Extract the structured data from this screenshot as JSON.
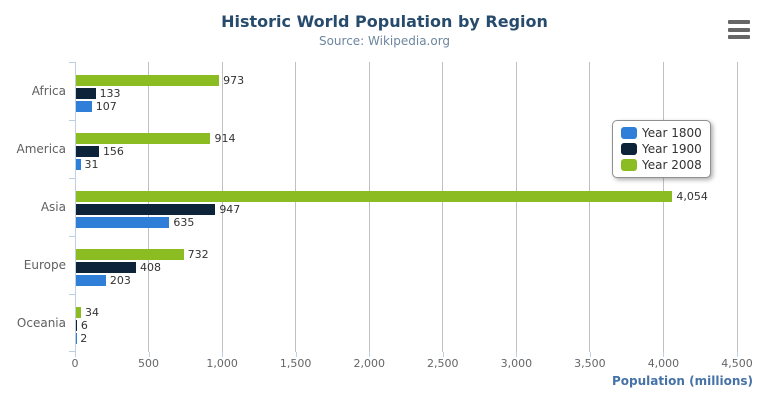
{
  "chart_data": {
    "type": "bar",
    "title": "Historic World Population by Region",
    "subtitle": "Source: Wikipedia.org",
    "categories": [
      "Africa",
      "America",
      "Asia",
      "Europe",
      "Oceania"
    ],
    "series": [
      {
        "name": "Year 1800",
        "color": "#2f7ed8",
        "values": [
          107,
          31,
          635,
          203,
          2
        ]
      },
      {
        "name": "Year 1900",
        "color": "#0d233a",
        "values": [
          133,
          156,
          947,
          408,
          6
        ]
      },
      {
        "name": "Year 2008",
        "color": "#8bbc21",
        "values": [
          973,
          914,
          4054,
          732,
          34
        ]
      }
    ],
    "display_order_top_to_bottom": [
      "Year 2008",
      "Year 1900",
      "Year 1800"
    ],
    "xlabel": "Population (millions)",
    "xlim": [
      0,
      4500
    ],
    "tick_interval": 500,
    "tick_labels": [
      "0",
      "500",
      "1,000",
      "1,500",
      "2,000",
      "2,500",
      "3,000",
      "3,500",
      "4,000",
      "4,500"
    ],
    "grid": true,
    "legend_position": "right",
    "legend_entries": [
      "Year 1800",
      "Year 1900",
      "Year 2008"
    ]
  },
  "controls": {
    "export_menu_icon": "hamburger-menu"
  },
  "colors": {
    "title": "#274b6d",
    "subtitle": "#6D869F",
    "axis_title": "#4572A7",
    "tick_label": "#666666",
    "category_label": "#606060",
    "data_label": "#333333",
    "gridline": "#C0C0C0",
    "axis_line": "#C0D0E0",
    "legend_border": "#909090"
  }
}
